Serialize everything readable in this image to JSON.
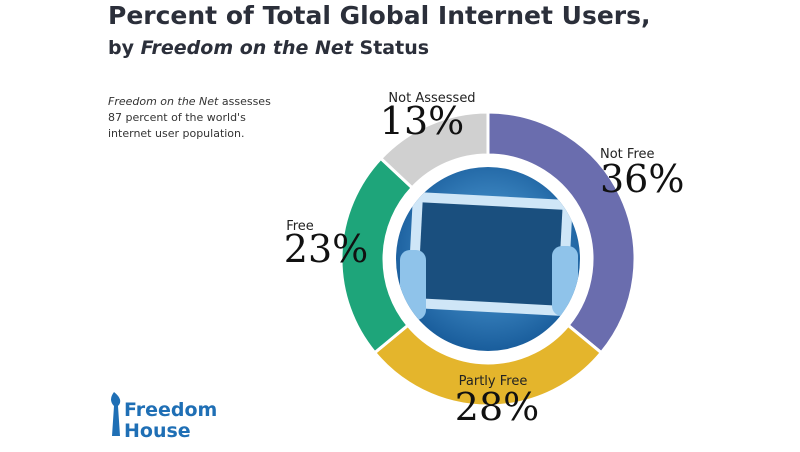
{
  "chart_data": {
    "type": "donut",
    "title": "Percent of Total Global Internet Users,",
    "subtitle": [
      "by",
      "Freedom on the Net",
      "Status"
    ],
    "annotation": [
      [
        "Freedom on the Net",
        "assesses"
      ],
      [
        "87 percent of the world's"
      ],
      [
        "internet user population."
      ]
    ],
    "logo": [
      "Freedom",
      "House"
    ],
    "categories": [
      "Not Free",
      "Partly Free",
      "Free",
      "Not Assessed"
    ],
    "values": [
      36,
      28,
      23,
      13
    ],
    "value_labels": [
      "36%",
      "28%",
      "23%",
      "13%"
    ],
    "colors": [
      "#6a6dae",
      "#e4b52c",
      "#1ea57a",
      "#d0d0d0"
    ]
  }
}
